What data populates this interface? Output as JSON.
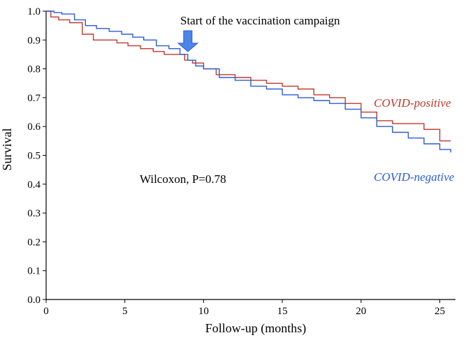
{
  "chart_data": {
    "type": "line",
    "title": "",
    "xlabel": "Follow-up (months)",
    "ylabel": "Survival",
    "xlim": [
      0,
      26
    ],
    "ylim": [
      0.0,
      1.0
    ],
    "grid": false,
    "x_ticks": [
      0,
      5,
      10,
      15,
      20,
      25
    ],
    "x_tick_labels": [
      "0",
      "5",
      "10",
      "15",
      "20",
      "25"
    ],
    "y_ticks": [
      0.0,
      0.1,
      0.2,
      0.3,
      0.4,
      0.5,
      0.6,
      0.7,
      0.8,
      0.9,
      1.0
    ],
    "y_tick_labels": [
      "0.0",
      "0.1",
      "0.2",
      "0.3",
      "0.4",
      "0.5",
      "0.6",
      "0.7",
      "0.8",
      "0.9",
      "1.0"
    ],
    "annotations": {
      "campaign_text": "Start of the vaccination campaign",
      "campaign_month": 9,
      "campaign_survival": 0.86,
      "test_text": "Wilcoxon, P=0.78"
    },
    "series": [
      {
        "name": "COVID-positive",
        "color": "#c0392b",
        "x": [
          0,
          0.3,
          0.8,
          1.5,
          2.3,
          3.0,
          3.8,
          4.5,
          5.2,
          6.0,
          6.8,
          7.5,
          8.3,
          8.8,
          9.3,
          10.0,
          10.8,
          12.0,
          13.0,
          14.0,
          15.0,
          16.0,
          17.0,
          18.0,
          19.0,
          20.0,
          21.0,
          22.0,
          23.0,
          24.0,
          25.0,
          25.7
        ],
        "values": [
          1.0,
          0.98,
          0.97,
          0.96,
          0.92,
          0.9,
          0.9,
          0.89,
          0.88,
          0.87,
          0.86,
          0.85,
          0.85,
          0.83,
          0.82,
          0.8,
          0.78,
          0.77,
          0.76,
          0.75,
          0.74,
          0.73,
          0.71,
          0.7,
          0.68,
          0.65,
          0.62,
          0.61,
          0.61,
          0.59,
          0.55,
          0.55
        ]
      },
      {
        "name": "COVID-negative",
        "color": "#2b5bd6",
        "x": [
          0,
          0.5,
          1.0,
          1.8,
          2.5,
          3.2,
          4.0,
          4.8,
          5.5,
          6.2,
          7.0,
          7.8,
          8.5,
          9.0,
          9.5,
          10.0,
          11.0,
          12.0,
          13.0,
          14.0,
          15.0,
          16.0,
          17.0,
          18.0,
          19.0,
          20.0,
          21.0,
          22.0,
          23.0,
          24.0,
          25.0,
          25.7
        ],
        "values": [
          1.0,
          0.995,
          0.99,
          0.97,
          0.95,
          0.94,
          0.93,
          0.92,
          0.91,
          0.9,
          0.88,
          0.87,
          0.85,
          0.83,
          0.81,
          0.8,
          0.77,
          0.76,
          0.74,
          0.73,
          0.71,
          0.7,
          0.69,
          0.68,
          0.66,
          0.63,
          0.6,
          0.58,
          0.56,
          0.54,
          0.52,
          0.51
        ]
      }
    ]
  }
}
